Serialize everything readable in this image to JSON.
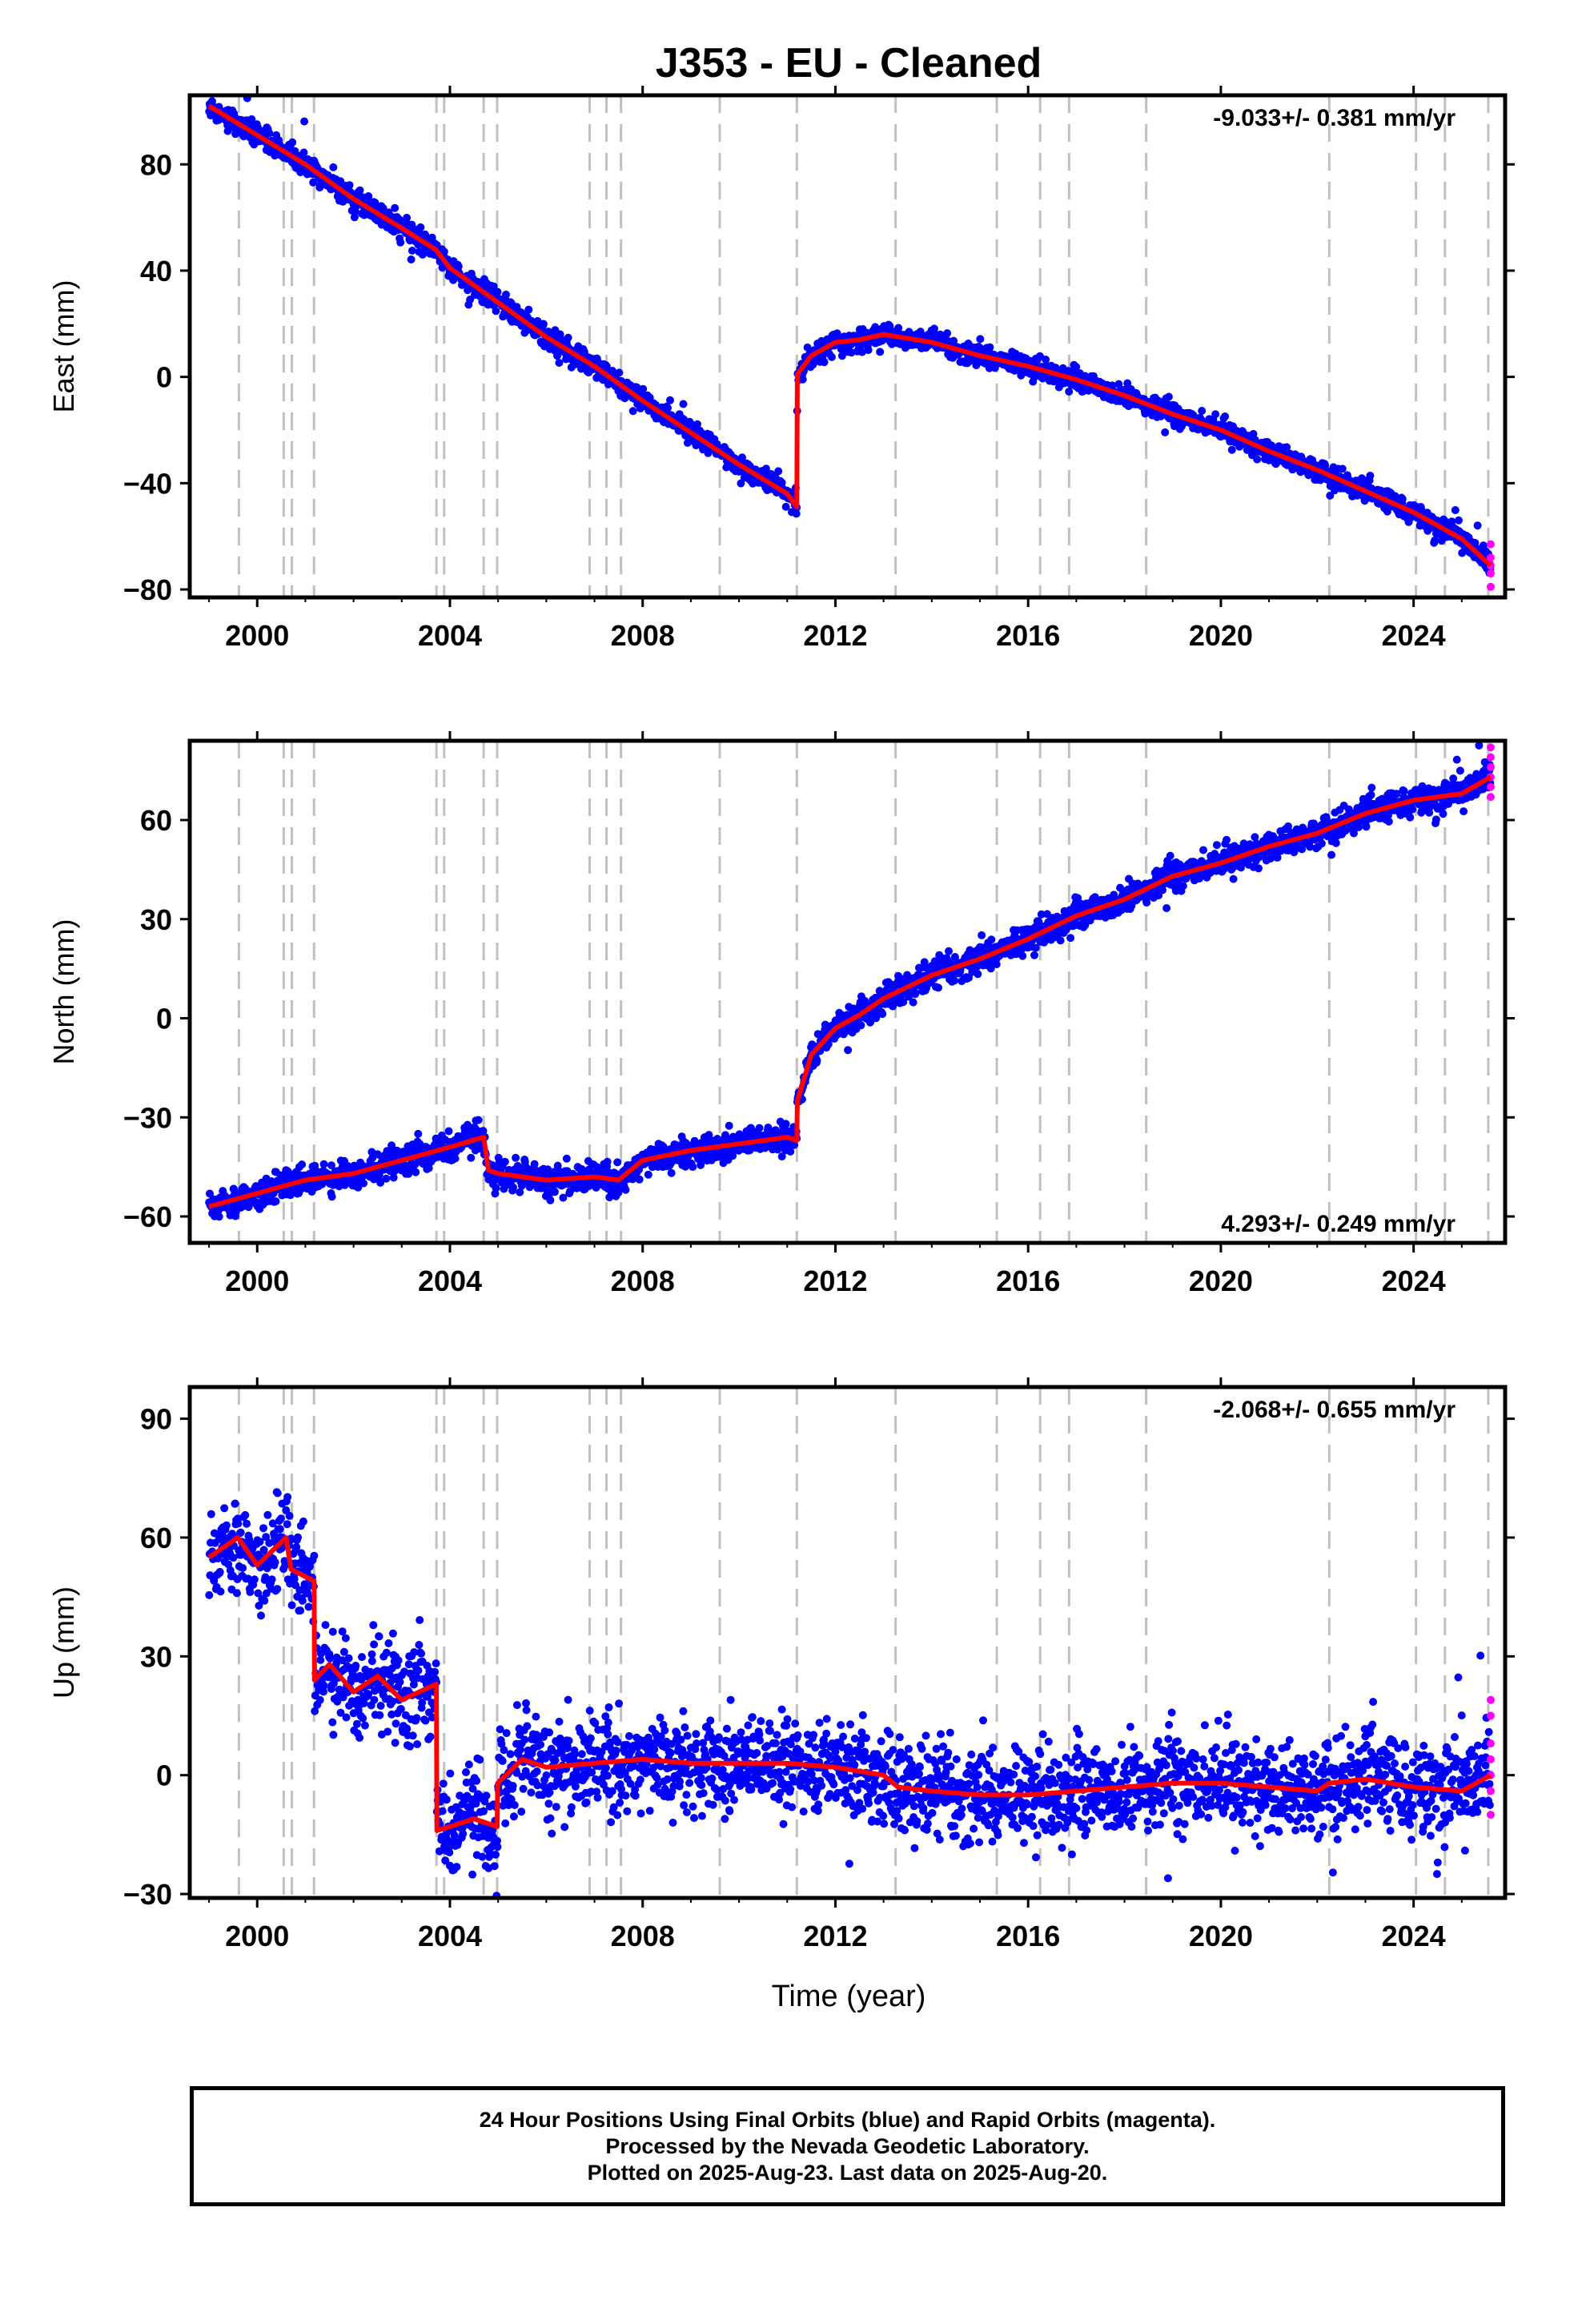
{
  "chart_data": {
    "title": "J353  - EU - Cleaned",
    "xlabel": "Time (year)",
    "xlim": [
      1998.6,
      2025.9
    ],
    "xticks": [
      2000,
      2004,
      2008,
      2012,
      2016,
      2020,
      2024
    ],
    "event_lines": [
      1999.62,
      2000.55,
      2000.72,
      2001.18,
      2003.72,
      2003.88,
      2004.7,
      2004.98,
      2006.9,
      2007.25,
      2007.55,
      2009.6,
      2011.2,
      2013.25,
      2015.35,
      2016.25,
      2016.85,
      2018.45,
      2022.25,
      2024.05,
      2024.65,
      2025.55
    ],
    "legend_notes": {
      "final_orbits_color": "#0000ff",
      "rapid_orbits_color": "#ff00ff",
      "model_color": "#ff0000",
      "event_line_color": "#c0c0c0"
    },
    "panels": [
      {
        "type": "scatter",
        "ylabel": "East (mm)",
        "ylim": [
          -83,
          106
        ],
        "yticks": [
          80,
          40,
          0,
          -40,
          -80
        ],
        "rate_text": "-9.033+/- 0.381 mm/yr",
        "rate_position": "top-right",
        "noise": 2.0,
        "model_points": [
          [
            1999.0,
            102
          ],
          [
            2000.0,
            91
          ],
          [
            2001.0,
            80
          ],
          [
            2002.0,
            67
          ],
          [
            2003.0,
            56
          ],
          [
            2003.7,
            48
          ],
          [
            2004.0,
            41
          ],
          [
            2005.0,
            28
          ],
          [
            2006.0,
            15
          ],
          [
            2007.0,
            4
          ],
          [
            2008.0,
            -9
          ],
          [
            2009.0,
            -21
          ],
          [
            2010.0,
            -33
          ],
          [
            2011.0,
            -44
          ],
          [
            2011.2,
            -49
          ],
          [
            2011.21,
            1
          ],
          [
            2011.5,
            8
          ],
          [
            2012.0,
            13
          ],
          [
            2012.5,
            14
          ],
          [
            2013.0,
            16
          ],
          [
            2014.0,
            13
          ],
          [
            2015.0,
            8
          ],
          [
            2016.0,
            4
          ],
          [
            2017.0,
            -1
          ],
          [
            2018.0,
            -7
          ],
          [
            2019.0,
            -14
          ],
          [
            2020.0,
            -20
          ],
          [
            2021.0,
            -28
          ],
          [
            2022.0,
            -35
          ],
          [
            2023.0,
            -43
          ],
          [
            2024.0,
            -51
          ],
          [
            2025.0,
            -61
          ],
          [
            2025.6,
            -71
          ]
        ],
        "rapid_points": [
          [
            2025.6,
            -68
          ],
          [
            2025.6,
            -71
          ],
          [
            2025.6,
            -74
          ],
          [
            2025.6,
            -79
          ],
          [
            2025.6,
            -63
          ]
        ]
      },
      {
        "type": "scatter",
        "ylabel": "North (mm)",
        "ylim": [
          -68,
          84
        ],
        "yticks": [
          60,
          30,
          0,
          -30,
          -60
        ],
        "rate_text": "4.293+/- 0.249 mm/yr",
        "rate_position": "bottom-right",
        "noise": 2.2,
        "model_points": [
          [
            1999.0,
            -57
          ],
          [
            2000.0,
            -53
          ],
          [
            2001.0,
            -49
          ],
          [
            2002.0,
            -47
          ],
          [
            2003.0,
            -43
          ],
          [
            2004.0,
            -39
          ],
          [
            2004.7,
            -36
          ],
          [
            2004.8,
            -46
          ],
          [
            2005.0,
            -47
          ],
          [
            2006.0,
            -49
          ],
          [
            2007.0,
            -48
          ],
          [
            2007.5,
            -49
          ],
          [
            2008.0,
            -43
          ],
          [
            2009.0,
            -40
          ],
          [
            2010.0,
            -38
          ],
          [
            2011.0,
            -36
          ],
          [
            2011.2,
            -37
          ],
          [
            2011.21,
            -25
          ],
          [
            2011.5,
            -11
          ],
          [
            2012.0,
            -3
          ],
          [
            2012.5,
            1
          ],
          [
            2013.0,
            6
          ],
          [
            2014.0,
            13
          ],
          [
            2015.0,
            18
          ],
          [
            2016.0,
            24
          ],
          [
            2017.0,
            31
          ],
          [
            2018.0,
            36
          ],
          [
            2019.0,
            43
          ],
          [
            2020.0,
            47
          ],
          [
            2021.0,
            52
          ],
          [
            2022.0,
            56
          ],
          [
            2023.0,
            62
          ],
          [
            2024.0,
            66
          ],
          [
            2025.0,
            68
          ],
          [
            2025.6,
            73
          ]
        ],
        "rapid_points": [
          [
            2025.6,
            70
          ],
          [
            2025.6,
            73
          ],
          [
            2025.6,
            76
          ],
          [
            2025.6,
            79
          ],
          [
            2025.6,
            82
          ],
          [
            2025.6,
            67
          ]
        ]
      },
      {
        "type": "scatter",
        "ylabel": "Up (mm)",
        "ylim": [
          -31,
          98
        ],
        "yticks": [
          90,
          60,
          30,
          0,
          -30
        ],
        "rate_text": "-2.068+/- 0.655 mm/yr",
        "rate_position": "top-right",
        "noise": 6.0,
        "model_points": [
          [
            1999.0,
            55
          ],
          [
            1999.6,
            60
          ],
          [
            2000.0,
            53
          ],
          [
            2000.6,
            60
          ],
          [
            2000.7,
            52
          ],
          [
            2001.18,
            49
          ],
          [
            2001.19,
            24
          ],
          [
            2001.5,
            28
          ],
          [
            2002.0,
            21
          ],
          [
            2002.5,
            25
          ],
          [
            2003.0,
            19
          ],
          [
            2003.72,
            23
          ],
          [
            2003.73,
            -14
          ],
          [
            2004.0,
            -13
          ],
          [
            2004.5,
            -11
          ],
          [
            2004.98,
            -13
          ],
          [
            2004.99,
            -2
          ],
          [
            2005.5,
            4
          ],
          [
            2006.0,
            2
          ],
          [
            2007.0,
            3
          ],
          [
            2008.0,
            4
          ],
          [
            2009.0,
            3
          ],
          [
            2010.0,
            3
          ],
          [
            2011.0,
            3
          ],
          [
            2012.0,
            2
          ],
          [
            2013.0,
            0
          ],
          [
            2013.3,
            -3
          ],
          [
            2014.0,
            -4
          ],
          [
            2015.0,
            -5
          ],
          [
            2016.0,
            -5
          ],
          [
            2017.0,
            -4
          ],
          [
            2018.0,
            -3
          ],
          [
            2019.0,
            -2
          ],
          [
            2020.0,
            -2
          ],
          [
            2021.0,
            -3
          ],
          [
            2022.0,
            -4
          ],
          [
            2022.25,
            -2
          ],
          [
            2023.0,
            -1
          ],
          [
            2024.0,
            -3
          ],
          [
            2025.0,
            -4
          ],
          [
            2025.6,
            0
          ]
        ],
        "rapid_points": [
          [
            2025.6,
            19
          ],
          [
            2025.6,
            15
          ],
          [
            2025.6,
            8
          ],
          [
            2025.6,
            0
          ],
          [
            2025.6,
            -4
          ],
          [
            2025.6,
            -10
          ],
          [
            2025.6,
            4
          ]
        ]
      }
    ]
  },
  "footer": {
    "line1": "24 Hour Positions Using Final Orbits (blue) and Rapid Orbits (magenta).",
    "line2": "Processed by the Nevada Geodetic Laboratory.",
    "line3": "Plotted on 2025-Aug-23. Last data on 2025-Aug-20."
  }
}
